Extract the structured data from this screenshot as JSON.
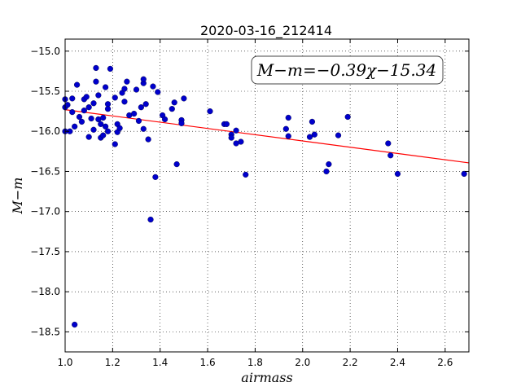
{
  "chart_data": {
    "type": "scatter",
    "title": "2020-03-16_212414",
    "xlabel": "airmass",
    "ylabel": "M−m",
    "annotation": "M−m=−0.39χ−15.34",
    "xlim": [
      1.0,
      2.7
    ],
    "ylim": [
      -18.75,
      -14.85
    ],
    "y_inverted": true,
    "grid": true,
    "x_ticks": [
      1.0,
      1.2,
      1.4,
      1.6,
      1.8,
      2.0,
      2.2,
      2.4,
      2.6
    ],
    "x_tick_labels": [
      "1.0",
      "1.2",
      "1.4",
      "1.6",
      "1.8",
      "2.0",
      "2.2",
      "2.4",
      "2.6"
    ],
    "y_ticks": [
      -15.0,
      -15.5,
      -16.0,
      -16.5,
      -17.0,
      -17.5,
      -18.0,
      -18.5
    ],
    "y_tick_labels": [
      "−15.0",
      "−15.5",
      "−16.0",
      "−16.5",
      "−17.0",
      "−17.5",
      "−18.0",
      "−18.5"
    ],
    "points_color": "#0000cc",
    "fit_color": "#ff0000",
    "fit": {
      "slope": -0.39,
      "intercept": -15.34
    },
    "points": [
      [
        1.0,
        -15.6
      ],
      [
        1.0,
        -15.7
      ],
      [
        1.0,
        -16.0
      ],
      [
        1.01,
        -15.67
      ],
      [
        1.02,
        -16.0
      ],
      [
        1.03,
        -15.76
      ],
      [
        1.03,
        -15.59
      ],
      [
        1.04,
        -15.94
      ],
      [
        1.05,
        -15.42
      ],
      [
        1.06,
        -15.82
      ],
      [
        1.07,
        -15.88
      ],
      [
        1.08,
        -15.6
      ],
      [
        1.08,
        -15.74
      ],
      [
        1.09,
        -15.57
      ],
      [
        1.1,
        -15.7
      ],
      [
        1.1,
        -16.07
      ],
      [
        1.11,
        -15.84
      ],
      [
        1.12,
        -15.98
      ],
      [
        1.12,
        -15.65
      ],
      [
        1.13,
        -15.38
      ],
      [
        1.14,
        -15.55
      ],
      [
        1.14,
        -15.85
      ],
      [
        1.15,
        -16.08
      ],
      [
        1.15,
        -15.91
      ],
      [
        1.16,
        -15.83
      ],
      [
        1.16,
        -16.05
      ],
      [
        1.17,
        -15.45
      ],
      [
        1.17,
        -15.94
      ],
      [
        1.18,
        -15.66
      ],
      [
        1.18,
        -15.72
      ],
      [
        1.18,
        -16.0
      ],
      [
        1.13,
        -15.21
      ],
      [
        1.19,
        -15.22
      ],
      [
        1.21,
        -15.58
      ],
      [
        1.22,
        -15.91
      ],
      [
        1.22,
        -16.01
      ],
      [
        1.23,
        -15.96
      ],
      [
        1.21,
        -16.16
      ],
      [
        1.24,
        -15.52
      ],
      [
        1.25,
        -15.47
      ],
      [
        1.26,
        -15.38
      ],
      [
        1.25,
        -15.63
      ],
      [
        1.27,
        -15.8
      ],
      [
        1.29,
        -15.78
      ],
      [
        1.3,
        -15.48
      ],
      [
        1.31,
        -15.87
      ],
      [
        1.32,
        -15.7
      ],
      [
        1.33,
        -15.4
      ],
      [
        1.33,
        -15.35
      ],
      [
        1.34,
        -15.66
      ],
      [
        1.33,
        -15.97
      ],
      [
        1.35,
        -16.1
      ],
      [
        1.37,
        -15.44
      ],
      [
        1.38,
        -16.57
      ],
      [
        1.39,
        -15.51
      ],
      [
        1.41,
        -15.8
      ],
      [
        1.42,
        -15.85
      ],
      [
        1.45,
        -15.72
      ],
      [
        1.46,
        -15.64
      ],
      [
        1.47,
        -16.41
      ],
      [
        1.49,
        -15.86
      ],
      [
        1.49,
        -15.9
      ],
      [
        1.5,
        -15.59
      ],
      [
        1.36,
        -17.1
      ],
      [
        1.04,
        -18.41
      ],
      [
        1.61,
        -15.75
      ],
      [
        1.67,
        -15.91
      ],
      [
        1.68,
        -15.91
      ],
      [
        1.7,
        -16.04
      ],
      [
        1.7,
        -16.08
      ],
      [
        1.72,
        -15.99
      ],
      [
        1.72,
        -16.15
      ],
      [
        1.74,
        -16.13
      ],
      [
        1.76,
        -16.54
      ],
      [
        1.93,
        -15.97
      ],
      [
        1.94,
        -15.83
      ],
      [
        1.94,
        -16.06
      ],
      [
        2.03,
        -16.07
      ],
      [
        2.04,
        -15.88
      ],
      [
        2.05,
        -16.04
      ],
      [
        2.1,
        -16.5
      ],
      [
        2.11,
        -16.41
      ],
      [
        2.15,
        -16.05
      ],
      [
        2.19,
        -15.82
      ],
      [
        2.36,
        -16.15
      ],
      [
        2.37,
        -16.3
      ],
      [
        2.4,
        -16.53
      ],
      [
        2.68,
        -16.53
      ]
    ]
  }
}
